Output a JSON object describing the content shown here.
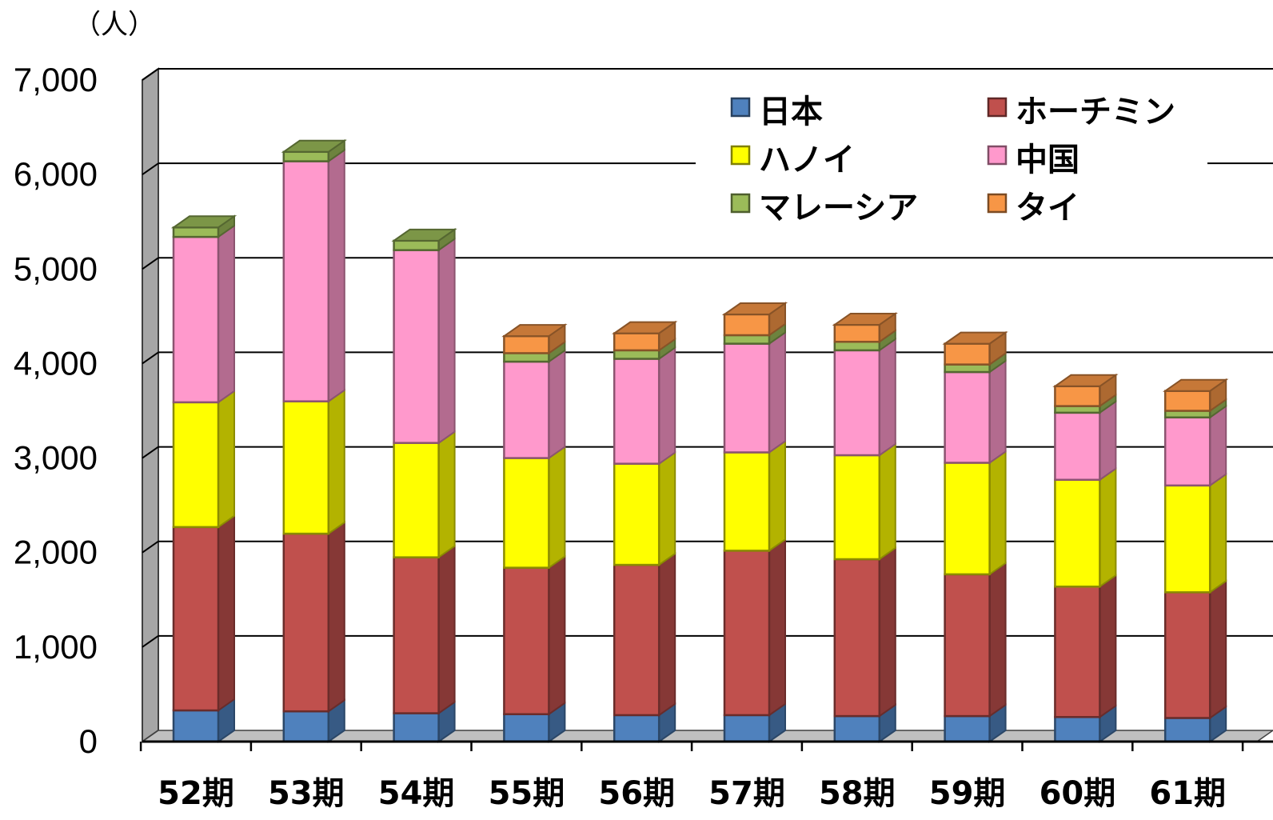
{
  "chart_data": {
    "type": "bar",
    "stacked": true,
    "unit_label": "（人）",
    "categories": [
      "52期",
      "53期",
      "54期",
      "55期",
      "56期",
      "57期",
      "58期",
      "59期",
      "60期",
      "61期"
    ],
    "series": [
      {
        "name": "日本",
        "color": "#4F81BD",
        "values": [
          330,
          320,
          300,
          290,
          280,
          280,
          270,
          270,
          260,
          250
        ]
      },
      {
        "name": "ホーチミン",
        "color": "#C0504D",
        "values": [
          1940,
          1880,
          1650,
          1550,
          1590,
          1740,
          1660,
          1500,
          1380,
          1330
        ]
      },
      {
        "name": "ハノイ",
        "color": "#FFFF00",
        "values": [
          1320,
          1400,
          1210,
          1160,
          1070,
          1040,
          1100,
          1180,
          1130,
          1130
        ]
      },
      {
        "name": "中国",
        "color": "#FF99CC",
        "values": [
          1750,
          2540,
          2040,
          1020,
          1110,
          1150,
          1110,
          960,
          710,
          720
        ]
      },
      {
        "name": "マレーシア",
        "color": "#9BBB59",
        "values": [
          100,
          100,
          100,
          90,
          90,
          90,
          90,
          80,
          70,
          70
        ]
      },
      {
        "name": "タイ",
        "color": "#F79646",
        "values": [
          0,
          0,
          0,
          180,
          180,
          220,
          180,
          220,
          210,
          210
        ]
      }
    ],
    "ylim": [
      0,
      7000
    ],
    "yticks": [
      "0",
      "1,000",
      "2,000",
      "3,000",
      "4,000",
      "5,000",
      "6,000",
      "7,000"
    ],
    "ytick_values": [
      0,
      1000,
      2000,
      3000,
      4000,
      5000,
      6000,
      7000
    ],
    "grid": true,
    "legend_position": "top-right"
  }
}
